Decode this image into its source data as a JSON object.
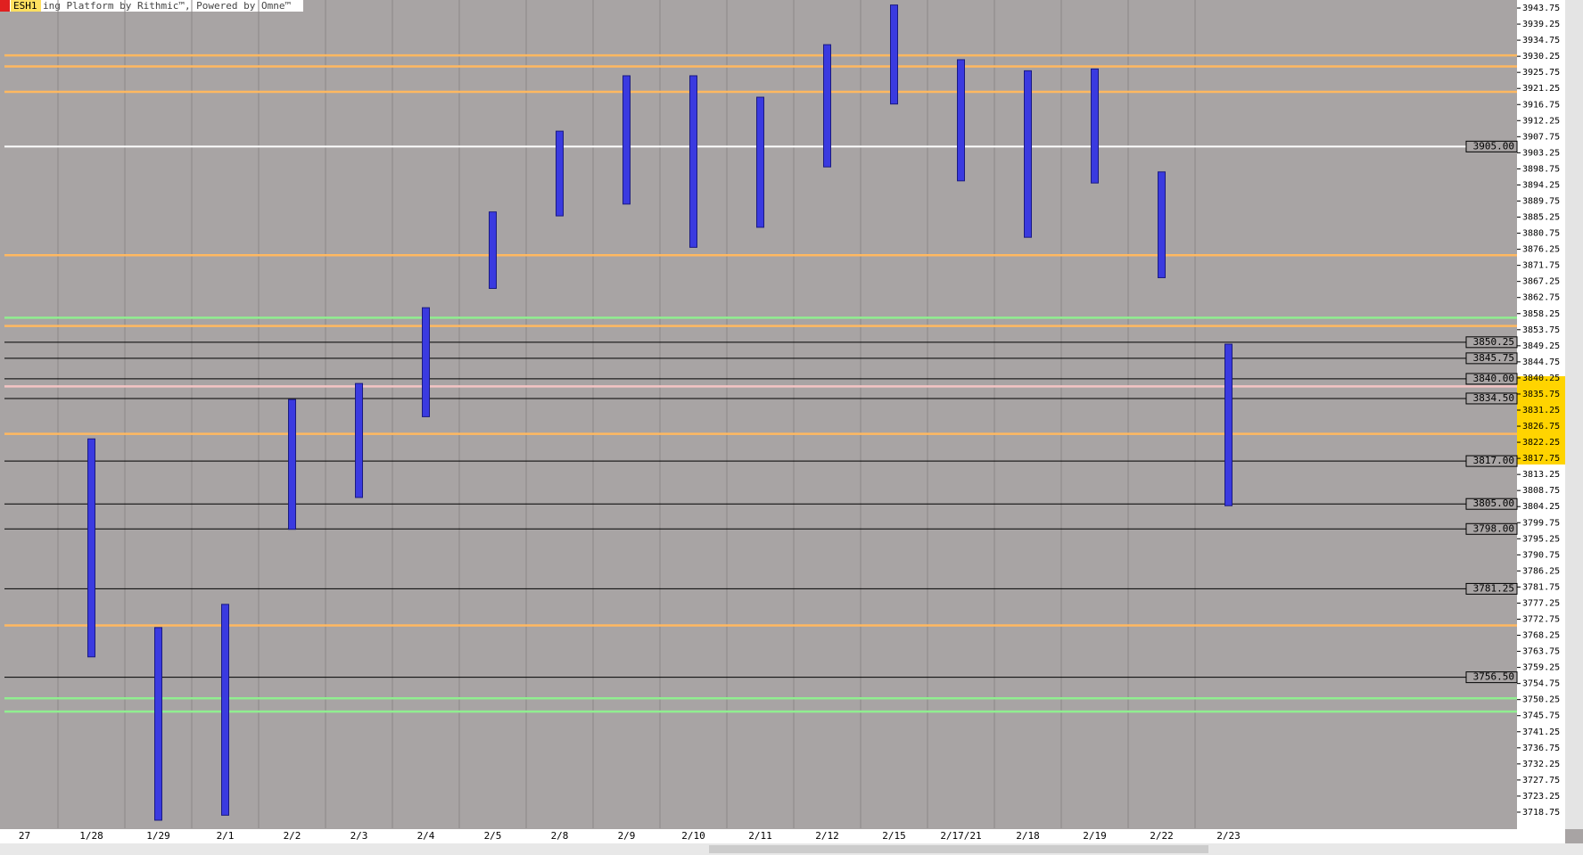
{
  "chart_data": {
    "type": "range",
    "symbol": "ESH1",
    "title": "ing Platform by Rithmic™, Powered by Omne™",
    "categories": [
      "27",
      "1/28",
      "1/29",
      "2/1",
      "2/2",
      "2/3",
      "2/4",
      "2/5",
      "2/8",
      "2/9",
      "2/10",
      "2/11",
      "2/12",
      "2/15",
      "2/17/21",
      "2/18",
      "2/19",
      "2/22",
      "2/23"
    ],
    "high": [
      null,
      3823.2,
      3770.4,
      3776.9,
      3834.2,
      3838.7,
      3859.9,
      3886.7,
      3909.3,
      3924.8,
      3924.8,
      3918.8,
      3933.5,
      3944.6,
      3929.3,
      3926.2,
      3926.7,
      3897.9,
      3849.7
    ],
    "low": [
      null,
      3762.2,
      3716.5,
      3717.9,
      3797.9,
      3806.8,
      3829.4,
      3865.3,
      3885.6,
      3888.9,
      3876.8,
      3882.4,
      3899.3,
      3916.9,
      3895.4,
      3879.6,
      3894.8,
      3868.3,
      3804.5
    ],
    "color": "#3a3ae0",
    "ylim": [
      3714.25,
      3946
    ],
    "yticks": [
      3943.75,
      3939.25,
      3934.75,
      3930.25,
      3925.75,
      3921.25,
      3916.75,
      3912.25,
      3907.75,
      3903.25,
      3898.75,
      3894.25,
      3889.75,
      3885.25,
      3880.75,
      3876.25,
      3871.75,
      3867.25,
      3862.75,
      3858.25,
      3853.75,
      3849.25,
      3844.75,
      3840.25,
      3835.75,
      3831.25,
      3826.75,
      3822.25,
      3817.75,
      3813.25,
      3808.75,
      3804.25,
      3799.75,
      3795.25,
      3790.75,
      3786.25,
      3781.75,
      3777.25,
      3772.75,
      3768.25,
      3763.75,
      3759.25,
      3754.75,
      3750.25,
      3745.75,
      3741.25,
      3736.75,
      3732.25,
      3727.75,
      3723.25,
      3718.75
    ],
    "levels": [
      {
        "value": 3905,
        "label": "3905.00",
        "color": "#ffffff"
      },
      {
        "value": 3850.25,
        "label": "3850.25",
        "color": "#000000"
      },
      {
        "value": 3845.75,
        "label": "3845.75",
        "color": "#000000"
      },
      {
        "value": 3840,
        "label": "3840.00",
        "color": "#000000"
      },
      {
        "value": 3834.5,
        "label": "3834.50",
        "color": "#000000"
      },
      {
        "value": 3817,
        "label": "3817.00",
        "color": "#000000"
      },
      {
        "value": 3805,
        "label": "3805.00",
        "color": "#000000"
      },
      {
        "value": 3798,
        "label": "3798.00",
        "color": "#000000"
      },
      {
        "value": 3781.25,
        "label": "3781.25",
        "color": "#000000"
      },
      {
        "value": 3756.5,
        "label": "3756.50",
        "color": "#000000"
      }
    ],
    "lines": [
      {
        "value": 3930.5,
        "color": "#ffb860"
      },
      {
        "value": 3927.4,
        "color": "#ffb860"
      },
      {
        "value": 3920.3,
        "color": "#ffb860"
      },
      {
        "value": 3874.6,
        "color": "#ffb860"
      },
      {
        "value": 3857.1,
        "color": "#90ee90"
      },
      {
        "value": 3854.8,
        "color": "#ffb860"
      },
      {
        "value": 3837.9,
        "color": "#f4c4c4"
      },
      {
        "value": 3824.6,
        "color": "#ffb860"
      },
      {
        "value": 3771,
        "color": "#ffb860"
      },
      {
        "value": 3750.6,
        "color": "#90ee90"
      },
      {
        "value": 3746.9,
        "color": "#90ee90"
      }
    ]
  }
}
